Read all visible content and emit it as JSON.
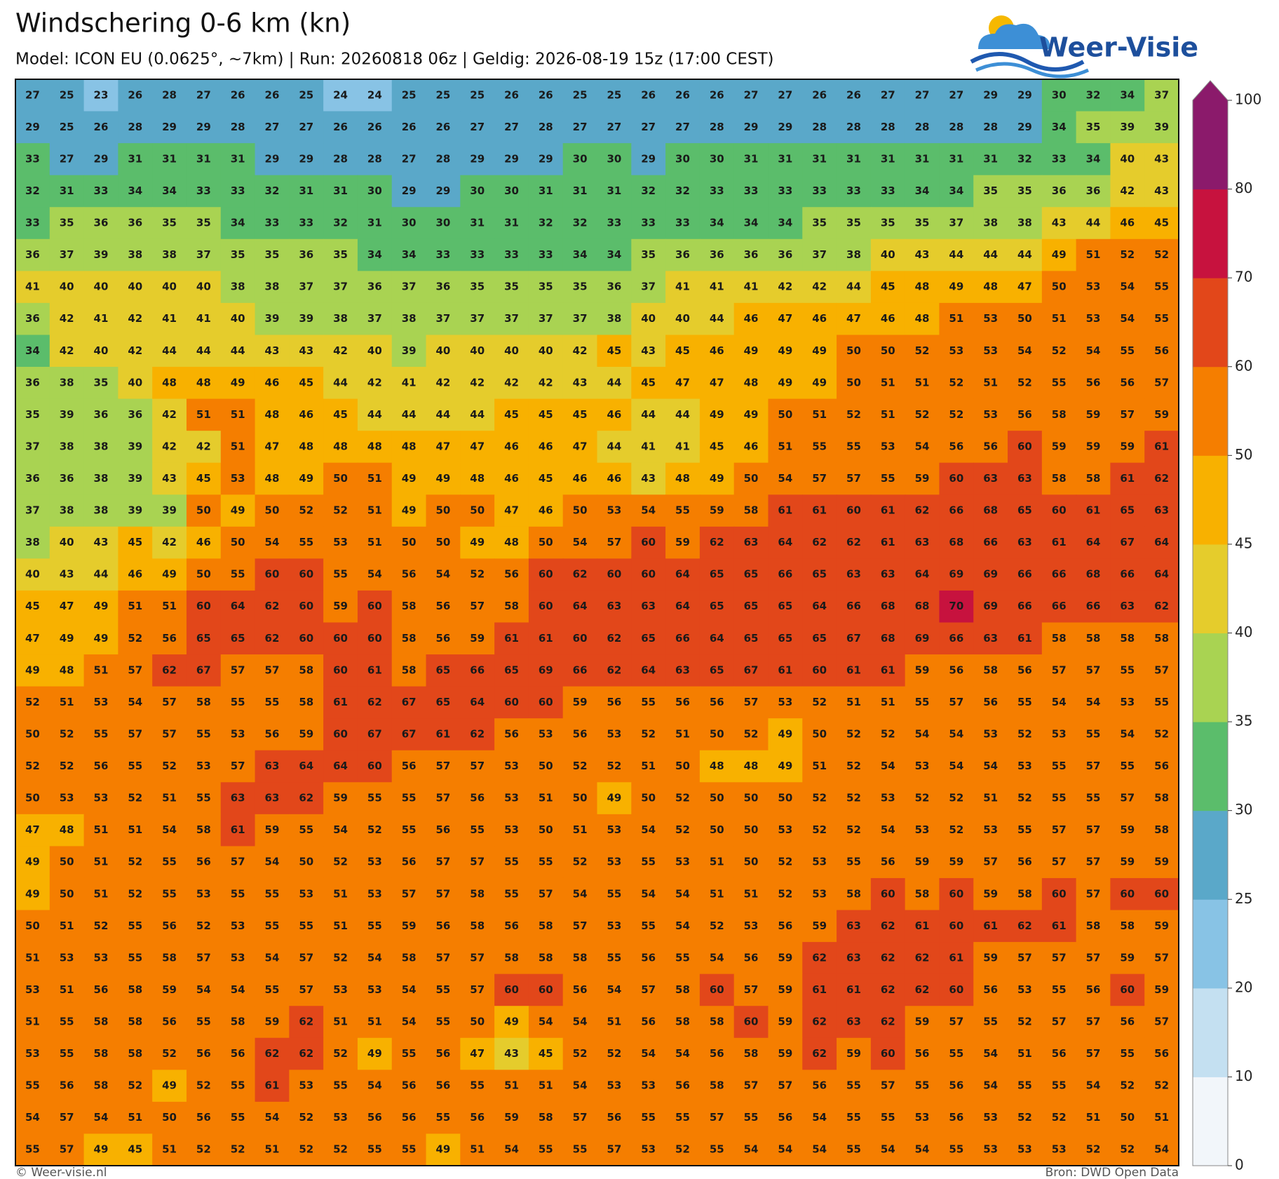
{
  "chart_data": {
    "type": "value-map",
    "title": "Windschering 0-6 km (kn)",
    "subtitle": "Model: ICON EU (0.0625°, ~7km)  |  Run: 20260818 06z  |  Geldig: 2026-08-19 15z (17:00 CEST)",
    "logo_text": "Weer-Visie",
    "footer_left": "© Weer-visie.nl",
    "footer_right": "Bron: DWD Open Data",
    "colorbar": {
      "levels": [
        0,
        10,
        20,
        25,
        30,
        35,
        40,
        45,
        50,
        60,
        70,
        80,
        100
      ],
      "colors": [
        "#f2f6fa",
        "#c4e0f1",
        "#88c3e5",
        "#5aa8c9",
        "#5bbd6b",
        "#a9d352",
        "#e5cc2c",
        "#f8b100",
        "#f57e00",
        "#e2471a",
        "#c7123e",
        "#8b1a6b"
      ]
    },
    "values": [
      [
        27,
        25,
        23,
        26,
        28,
        27,
        26,
        26,
        25,
        24,
        24,
        25,
        25,
        25,
        26,
        26,
        25,
        25,
        26,
        26,
        26,
        27,
        27,
        26,
        26,
        27,
        27,
        27,
        29,
        29,
        30,
        32,
        34,
        37
      ],
      [
        29,
        25,
        26,
        28,
        29,
        29,
        28,
        27,
        27,
        26,
        26,
        26,
        26,
        27,
        27,
        28,
        27,
        27,
        27,
        27,
        28,
        29,
        29,
        28,
        28,
        28,
        28,
        28,
        28,
        29,
        34,
        35,
        39,
        39
      ],
      [
        33,
        27,
        29,
        31,
        31,
        31,
        31,
        29,
        29,
        28,
        28,
        27,
        28,
        29,
        29,
        29,
        30,
        30,
        29,
        30,
        30,
        31,
        31,
        31,
        31,
        31,
        31,
        31,
        31,
        32,
        33,
        34,
        40,
        43
      ],
      [
        32,
        31,
        33,
        34,
        34,
        33,
        33,
        32,
        31,
        31,
        30,
        29,
        29,
        30,
        30,
        31,
        31,
        31,
        32,
        32,
        33,
        33,
        33,
        33,
        33,
        33,
        34,
        34,
        35,
        35,
        36,
        36,
        42,
        43
      ],
      [
        33,
        35,
        36,
        36,
        35,
        35,
        34,
        33,
        33,
        32,
        31,
        30,
        30,
        31,
        31,
        32,
        32,
        33,
        33,
        33,
        34,
        34,
        34,
        35,
        35,
        35,
        35,
        37,
        38,
        38,
        43,
        44,
        46,
        45
      ],
      [
        36,
        37,
        39,
        38,
        38,
        37,
        35,
        35,
        36,
        35,
        34,
        34,
        33,
        33,
        33,
        33,
        34,
        34,
        35,
        36,
        36,
        36,
        36,
        37,
        38,
        40,
        43,
        44,
        44,
        44,
        49,
        51,
        52,
        52
      ],
      [
        41,
        40,
        40,
        40,
        40,
        40,
        38,
        38,
        37,
        37,
        36,
        37,
        36,
        35,
        35,
        35,
        35,
        36,
        37,
        41,
        41,
        41,
        42,
        42,
        44,
        45,
        48,
        49,
        48,
        47,
        50,
        53,
        54,
        55
      ],
      [
        36,
        42,
        41,
        42,
        41,
        41,
        40,
        39,
        39,
        38,
        37,
        38,
        37,
        37,
        37,
        37,
        37,
        38,
        40,
        40,
        44,
        46,
        47,
        46,
        47,
        46,
        48,
        51,
        53,
        50,
        51,
        53,
        54,
        55
      ],
      [
        34,
        42,
        40,
        42,
        44,
        44,
        44,
        43,
        43,
        42,
        40,
        39,
        40,
        40,
        40,
        40,
        42,
        45,
        43,
        45,
        46,
        49,
        49,
        49,
        50,
        50,
        52,
        53,
        53,
        54,
        52,
        54,
        55,
        56
      ],
      [
        36,
        38,
        35,
        40,
        48,
        48,
        49,
        46,
        45,
        44,
        42,
        41,
        42,
        42,
        42,
        42,
        43,
        44,
        45,
        47,
        47,
        48,
        49,
        49,
        50,
        51,
        51,
        52,
        51,
        52,
        55,
        56,
        56,
        57
      ],
      [
        35,
        39,
        36,
        36,
        42,
        51,
        51,
        48,
        46,
        45,
        44,
        44,
        44,
        44,
        45,
        45,
        45,
        46,
        44,
        44,
        49,
        49,
        50,
        51,
        52,
        51,
        52,
        52,
        53,
        56,
        58,
        59,
        57,
        59
      ],
      [
        37,
        38,
        38,
        39,
        42,
        42,
        51,
        47,
        48,
        48,
        48,
        48,
        47,
        47,
        46,
        46,
        47,
        44,
        41,
        41,
        45,
        46,
        51,
        55,
        55,
        53,
        54,
        56,
        56,
        60,
        59,
        59,
        59,
        61
      ],
      [
        36,
        36,
        38,
        39,
        43,
        45,
        53,
        48,
        49,
        50,
        51,
        49,
        49,
        48,
        46,
        45,
        46,
        46,
        43,
        48,
        49,
        50,
        54,
        57,
        57,
        55,
        59,
        60,
        63,
        63,
        58,
        58,
        61,
        62
      ],
      [
        37,
        38,
        38,
        39,
        39,
        50,
        49,
        50,
        52,
        52,
        51,
        49,
        50,
        50,
        47,
        46,
        50,
        53,
        54,
        55,
        59,
        58,
        61,
        61,
        60,
        61,
        62,
        66,
        68,
        65,
        60,
        61,
        65,
        63
      ],
      [
        38,
        40,
        43,
        45,
        42,
        46,
        50,
        54,
        55,
        53,
        51,
        50,
        50,
        49,
        48,
        50,
        54,
        57,
        60,
        59,
        62,
        63,
        64,
        62,
        62,
        61,
        63,
        68,
        66,
        63,
        61,
        64,
        67,
        64
      ],
      [
        40,
        43,
        44,
        46,
        49,
        50,
        55,
        60,
        60,
        55,
        54,
        56,
        54,
        52,
        56,
        60,
        62,
        60,
        60,
        64,
        65,
        65,
        66,
        65,
        63,
        63,
        64,
        69,
        69,
        66,
        66,
        68,
        66,
        64
      ],
      [
        45,
        47,
        49,
        51,
        51,
        60,
        64,
        62,
        60,
        59,
        60,
        58,
        56,
        57,
        58,
        60,
        64,
        63,
        63,
        64,
        65,
        65,
        65,
        64,
        66,
        68,
        68,
        70,
        69,
        66,
        66,
        66,
        63,
        62
      ],
      [
        47,
        49,
        49,
        52,
        56,
        65,
        65,
        62,
        60,
        60,
        60,
        58,
        56,
        59,
        61,
        61,
        60,
        62,
        65,
        66,
        64,
        65,
        65,
        65,
        67,
        68,
        69,
        66,
        63,
        61,
        58,
        58,
        58,
        58
      ],
      [
        49,
        48,
        51,
        57,
        62,
        67,
        57,
        57,
        58,
        60,
        61,
        58,
        65,
        66,
        65,
        69,
        66,
        62,
        64,
        63,
        65,
        67,
        61,
        60,
        61,
        61,
        59,
        56,
        58,
        56,
        57,
        57,
        55,
        57
      ],
      [
        52,
        51,
        53,
        54,
        57,
        58,
        55,
        55,
        58,
        61,
        62,
        67,
        65,
        64,
        60,
        60,
        59,
        56,
        55,
        56,
        56,
        57,
        53,
        52,
        51,
        51,
        55,
        57,
        56,
        55,
        54,
        54,
        53,
        55
      ],
      [
        50,
        52,
        55,
        57,
        57,
        55,
        53,
        56,
        59,
        60,
        67,
        67,
        61,
        62,
        56,
        53,
        56,
        53,
        52,
        51,
        50,
        52,
        49,
        50,
        52,
        52,
        54,
        54,
        53,
        52,
        53,
        55,
        54,
        52
      ],
      [
        52,
        52,
        56,
        55,
        52,
        53,
        57,
        63,
        64,
        64,
        60,
        56,
        57,
        57,
        53,
        50,
        52,
        52,
        51,
        50,
        48,
        48,
        49,
        51,
        52,
        54,
        53,
        54,
        54,
        53,
        55,
        57,
        55,
        56
      ],
      [
        50,
        53,
        53,
        52,
        51,
        55,
        63,
        63,
        62,
        59,
        55,
        55,
        57,
        56,
        53,
        51,
        50,
        49,
        50,
        52,
        50,
        50,
        50,
        52,
        52,
        53,
        52,
        52,
        51,
        52,
        55,
        55,
        57,
        58
      ],
      [
        47,
        48,
        51,
        51,
        54,
        58,
        61,
        59,
        55,
        54,
        52,
        55,
        56,
        55,
        53,
        50,
        51,
        53,
        54,
        52,
        50,
        50,
        53,
        52,
        52,
        54,
        53,
        52,
        53,
        55,
        57,
        57,
        59,
        58
      ],
      [
        49,
        50,
        51,
        52,
        55,
        56,
        57,
        54,
        50,
        52,
        53,
        56,
        57,
        57,
        55,
        55,
        52,
        53,
        55,
        53,
        51,
        50,
        52,
        53,
        55,
        56,
        59,
        59,
        57,
        56,
        57,
        57,
        59,
        59
      ],
      [
        49,
        50,
        51,
        52,
        55,
        53,
        55,
        55,
        53,
        51,
        53,
        57,
        57,
        58,
        55,
        57,
        54,
        55,
        54,
        54,
        51,
        51,
        52,
        53,
        58,
        60,
        58,
        60,
        59,
        58,
        60,
        57,
        60,
        60
      ],
      [
        50,
        51,
        52,
        55,
        56,
        52,
        53,
        55,
        55,
        51,
        55,
        59,
        56,
        58,
        56,
        58,
        57,
        53,
        55,
        54,
        52,
        53,
        56,
        59,
        63,
        62,
        61,
        60,
        61,
        62,
        61,
        58,
        58,
        59
      ],
      [
        51,
        53,
        53,
        55,
        58,
        57,
        53,
        54,
        57,
        52,
        54,
        58,
        57,
        57,
        58,
        58,
        58,
        55,
        56,
        55,
        54,
        56,
        59,
        62,
        63,
        62,
        62,
        61,
        59,
        57,
        57,
        57,
        59,
        57
      ],
      [
        53,
        51,
        56,
        58,
        59,
        54,
        54,
        55,
        57,
        53,
        53,
        54,
        55,
        57,
        60,
        60,
        56,
        54,
        57,
        58,
        60,
        57,
        59,
        61,
        61,
        62,
        62,
        60,
        56,
        53,
        55,
        56,
        60,
        59
      ],
      [
        51,
        55,
        58,
        58,
        56,
        55,
        58,
        59,
        62,
        51,
        51,
        54,
        55,
        50,
        49,
        54,
        54,
        51,
        56,
        58,
        58,
        60,
        59,
        62,
        63,
        62,
        59,
        57,
        55,
        52,
        57,
        57,
        56,
        57
      ],
      [
        53,
        55,
        58,
        58,
        52,
        56,
        56,
        62,
        62,
        52,
        49,
        55,
        56,
        47,
        43,
        45,
        52,
        52,
        54,
        54,
        56,
        58,
        59,
        62,
        59,
        60,
        56,
        55,
        54,
        51,
        56,
        57,
        55,
        56
      ],
      [
        55,
        56,
        58,
        52,
        49,
        52,
        55,
        61,
        53,
        55,
        54,
        56,
        56,
        55,
        51,
        51,
        54,
        53,
        53,
        56,
        58,
        57,
        57,
        56,
        55,
        57,
        55,
        56,
        54,
        55,
        55,
        54,
        52,
        52
      ],
      [
        54,
        57,
        54,
        51,
        50,
        56,
        55,
        54,
        52,
        53,
        56,
        56,
        55,
        56,
        59,
        58,
        57,
        56,
        55,
        55,
        57,
        55,
        56,
        54,
        55,
        55,
        53,
        56,
        53,
        52,
        52,
        51,
        50,
        51
      ],
      [
        55,
        57,
        49,
        45,
        51,
        52,
        52,
        51,
        52,
        52,
        55,
        55,
        49,
        51,
        54,
        55,
        55,
        57,
        53,
        52,
        55,
        54,
        54,
        54,
        55,
        54,
        54,
        55,
        53,
        53,
        53,
        52,
        52,
        54
      ]
    ]
  }
}
